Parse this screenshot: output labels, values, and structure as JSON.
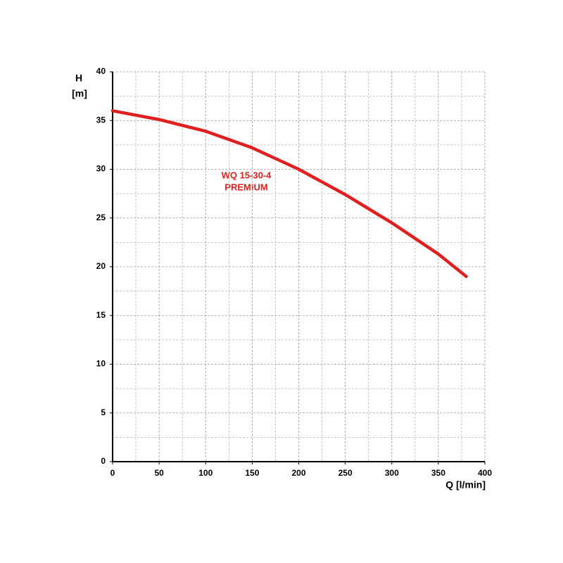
{
  "chart_data": {
    "type": "line",
    "x_label": "Q [l/min]",
    "y_label": "H",
    "y_unit": "[m]",
    "annotation": [
      "WQ 15-30-4",
      "PREMIUM"
    ],
    "series": [
      {
        "color": "#e02020",
        "x": [
          0,
          50,
          100,
          150,
          200,
          250,
          300,
          350,
          380
        ],
        "values": [
          36,
          35.1,
          33.9,
          32.2,
          30.0,
          27.4,
          24.5,
          21.3,
          19.0
        ]
      }
    ],
    "xlim": [
      0,
      400
    ],
    "xticks": [
      0,
      50,
      100,
      150,
      200,
      250,
      300,
      350,
      400
    ],
    "ylim": [
      0,
      40
    ],
    "yticks": [
      0,
      5,
      10,
      15,
      20,
      25,
      30,
      35,
      40
    ],
    "grid": true,
    "minor_grid": true
  }
}
